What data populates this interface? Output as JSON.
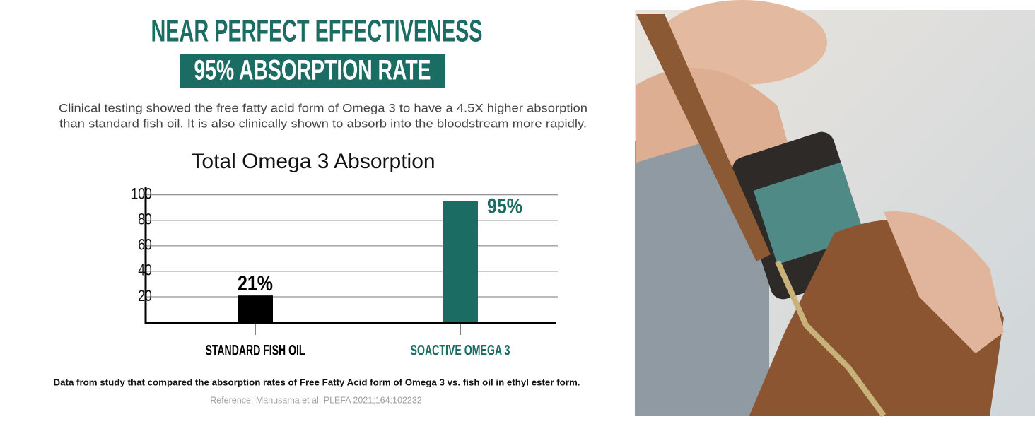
{
  "header": {
    "title": "NEAR PERFECT EFFECTIVENESS",
    "subtitle": "95% ABSORPTION RATE"
  },
  "description": [
    "Clinical testing showed the free fatty acid form of Omega 3 to have a 4.5X higher absorption",
    "than standard fish oil. It is also clinically shown to absorb into the bloodstream more rapidly."
  ],
  "chart_data": {
    "type": "bar",
    "title": "Total Omega 3 Absorption",
    "categories": [
      "STANDARD FISH OIL",
      "SOACTIVE OMEGA 3"
    ],
    "values": [
      21,
      95
    ],
    "value_labels": [
      "21%",
      "95%"
    ],
    "colors": [
      "#000000",
      "#1b6d64"
    ],
    "ylim": [
      0,
      106
    ],
    "yticks": [
      20,
      40,
      60,
      80,
      100
    ],
    "grid": true
  },
  "footnote": "Data from study that compared the absorption rates of Free Fatty Acid form of Omega 3 vs. fish oil in ethyl ester form.",
  "reference": "Reference: Manusama et al. PLEFA 2021;164:102232"
}
